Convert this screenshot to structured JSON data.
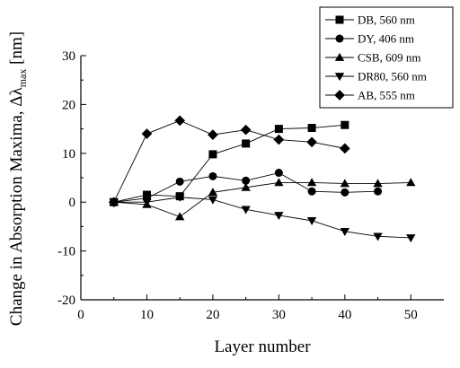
{
  "chart_data": {
    "type": "line",
    "xlabel": "Layer number",
    "ylabel_parts": {
      "main": "Change in Absorption Maxima, Δλ",
      "subscript": "max",
      "unit": " [nm]"
    },
    "xlim": [
      0,
      55
    ],
    "ylim": [
      -20,
      30
    ],
    "x_ticks": [
      0,
      10,
      20,
      30,
      40,
      50
    ],
    "y_ticks": [
      -20,
      -10,
      0,
      10,
      20,
      30
    ],
    "grid": false,
    "legend_position": "top-right",
    "series": [
      {
        "name": "DB, 560 nm",
        "marker": "square",
        "x": [
          5,
          10,
          15,
          20,
          25,
          30,
          35,
          40
        ],
        "y": [
          0,
          1.5,
          1.2,
          9.8,
          12,
          15,
          15.2,
          15.8
        ]
      },
      {
        "name": "DY, 406 nm",
        "marker": "circle",
        "x": [
          5,
          10,
          15,
          20,
          25,
          30,
          35,
          40,
          45
        ],
        "y": [
          0,
          0.8,
          4.2,
          5.3,
          4.4,
          6,
          2.2,
          2,
          2.2
        ]
      },
      {
        "name": "CSB, 609 nm",
        "marker": "triangle-up",
        "x": [
          5,
          10,
          15,
          20,
          25,
          30,
          35,
          40,
          45,
          50
        ],
        "y": [
          0,
          -0.5,
          -3,
          2,
          3,
          4,
          4,
          3.8,
          3.8,
          4
        ]
      },
      {
        "name": "DR80, 560 nm",
        "marker": "triangle-down",
        "x": [
          5,
          10,
          15,
          20,
          25,
          30,
          35,
          40,
          45,
          50
        ],
        "y": [
          0,
          0,
          1,
          0.5,
          -1.5,
          -2.7,
          -3.8,
          -6,
          -7,
          -7.3
        ]
      },
      {
        "name": "AB, 555 nm",
        "marker": "diamond",
        "x": [
          5,
          10,
          15,
          20,
          25,
          30,
          35,
          40
        ],
        "y": [
          0,
          14,
          16.7,
          13.8,
          14.8,
          12.8,
          12.3,
          11
        ]
      }
    ]
  }
}
